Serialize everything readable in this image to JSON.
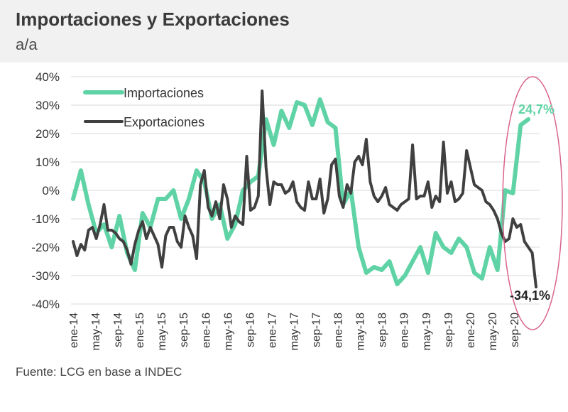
{
  "title": "Importaciones y Exportaciones",
  "subtitle": "a/a",
  "source": "Fuente: LCG en base a INDEC",
  "colors": {
    "importaciones": "#5fd3a5",
    "exportaciones": "#404040",
    "highlight": "#d9628f",
    "grid": "#d9d9d9"
  },
  "chart_data": {
    "type": "line",
    "ylim": [
      -40,
      40
    ],
    "yticks": [
      "40%",
      "30%",
      "20%",
      "10%",
      "0%",
      "-10%",
      "-20%",
      "-30%",
      "-40%"
    ],
    "ytick_values": [
      40,
      30,
      20,
      10,
      0,
      -10,
      -20,
      -30,
      -40
    ],
    "xtick_labels": [
      "ene-14",
      "may-14",
      "sep-14",
      "ene-15",
      "may-15",
      "sep-15",
      "ene-16",
      "may-16",
      "sep-16",
      "ene-17",
      "may-17",
      "sep-17",
      "ene-18",
      "may-18",
      "sep-18",
      "ene-19",
      "may-19",
      "sep-19",
      "ene-20",
      "may-20",
      "sep-20"
    ],
    "xtick_months": [
      0,
      4,
      8,
      12,
      16,
      20,
      24,
      28,
      32,
      36,
      40,
      44,
      48,
      52,
      56,
      60,
      64,
      68,
      72,
      76,
      80
    ],
    "months_total": 85,
    "legend": {
      "position": "top-left",
      "entries": [
        "Importaciones",
        "Exportaciones"
      ]
    },
    "series": [
      {
        "name": "Importaciones",
        "values": [
          -3,
          7,
          -5,
          -15,
          -12,
          -20,
          -9,
          -22,
          -28,
          -8,
          -13,
          -3,
          -3,
          0,
          -10,
          -3,
          7,
          3,
          -10,
          -5,
          -17,
          -12,
          0,
          3,
          5,
          25,
          16,
          28,
          22,
          31,
          30,
          23,
          32,
          24,
          22,
          -5,
          0,
          -20,
          -29,
          -27,
          -28,
          -25,
          -33,
          -30,
          -25,
          -20,
          -29,
          -15,
          -20,
          -22,
          -17,
          -20,
          -29,
          -31,
          -20,
          -28,
          0,
          -1,
          23,
          25
        ],
        "months": [
          0,
          1,
          2,
          3,
          4,
          5,
          6,
          7,
          8,
          9,
          10,
          11,
          12,
          13,
          14,
          15,
          16,
          17,
          18,
          19,
          20,
          21,
          22,
          23,
          24,
          25,
          26,
          27,
          28,
          29,
          30,
          31,
          32,
          33,
          34,
          35,
          36,
          37,
          38,
          39,
          40,
          41,
          42,
          43,
          44,
          45,
          46,
          47,
          48,
          49,
          50,
          51,
          52,
          53,
          54,
          55,
          56,
          57,
          58,
          59
        ],
        "months_scale": 1.4
      },
      {
        "name": "Exportaciones",
        "values": [
          -18,
          -23,
          -19,
          -21,
          -14,
          -13,
          -17,
          -12,
          -5,
          -14,
          -14,
          -15,
          -17,
          -18,
          -21,
          -26,
          -19,
          -14,
          -11,
          -17,
          -13,
          -16,
          -19,
          -27,
          -16,
          -13,
          -13,
          -18,
          -20,
          -9,
          -13,
          -16,
          -24,
          2,
          7,
          -6,
          -9,
          -4,
          -10,
          2,
          -3,
          -13,
          -9,
          -11,
          -12,
          12,
          -7,
          -6,
          -2,
          35,
          8,
          -5,
          3,
          2,
          2,
          -1,
          0,
          3,
          -4,
          -6,
          -7,
          3,
          -3,
          -3,
          4,
          -8,
          -3,
          9,
          11,
          -2,
          -6,
          2,
          -1,
          10,
          12,
          9,
          18,
          3,
          -2,
          -4,
          -2,
          1,
          -5,
          -6,
          -7,
          -5,
          -4,
          -3,
          16,
          -3,
          -2,
          -2,
          3,
          -6,
          -2,
          -4,
          17,
          -1,
          3,
          -4,
          -3,
          -1,
          14,
          8,
          2,
          1,
          0,
          -4,
          -5,
          -7,
          -10,
          -15,
          -18,
          -17,
          -10,
          -13,
          -12,
          -18,
          -20,
          -22,
          -34
        ]
      }
    ],
    "annotations": [
      {
        "text": "24,7%",
        "series": "Importaciones",
        "value": 24.7
      },
      {
        "text": "-34,1%",
        "series": "Exportaciones",
        "value": -34.1
      }
    ]
  }
}
